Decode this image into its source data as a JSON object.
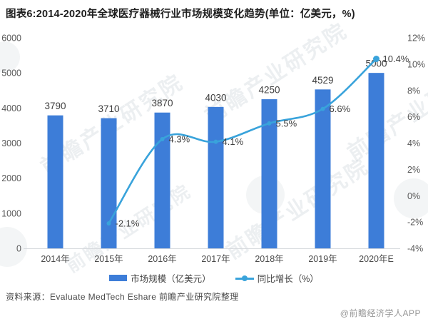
{
  "title": "图表6:2014-2020年全球医疗器械行业市场规模变化趋势(单位：亿美元，%)",
  "watermark": {
    "text": "前瞻产业研究院"
  },
  "source_text": "资料来源：Evaluate MedTech Eshare 前瞻产业研究院整理",
  "brand_text": "@前瞻经济学人APP",
  "colors": {
    "bar": "#3d7dd8",
    "line": "#39a3db",
    "axis_line": "#d5d8dc",
    "data_label": "#3f3f3f",
    "axis_label": "#595959"
  },
  "chart_data": {
    "type": "bar",
    "subtype": "bar-line-combo",
    "title": "图表6:2014-2020年全球医疗器械行业市场规模变化趋势(单位：亿美元，%)",
    "categories": [
      "2014年",
      "2015年",
      "2016年",
      "2017年",
      "2018年",
      "2019年",
      "2020年E"
    ],
    "series": [
      {
        "name": "市场规模（亿美元）",
        "type": "bar",
        "axis": "left",
        "values": [
          3790,
          3710,
          3870,
          4030,
          4250,
          4529,
          5000
        ],
        "labels": [
          "3790",
          "3710",
          "3870",
          "4030",
          "4250",
          "4529",
          "5000"
        ]
      },
      {
        "name": "同比增长（%）",
        "type": "line",
        "axis": "right",
        "values": [
          null,
          -2.1,
          4.3,
          4.1,
          5.5,
          6.6,
          10.4
        ],
        "labels": [
          null,
          "-2.1%",
          "4.3%",
          "4.1%",
          "5.5%",
          "6.6%",
          "10.4%"
        ]
      }
    ],
    "left_axis": {
      "min": 0,
      "max": 6000,
      "ticks": [
        0,
        1000,
        2000,
        3000,
        4000,
        5000,
        6000
      ],
      "tick_labels": [
        "0",
        "1000",
        "2000",
        "3000",
        "4000",
        "5000",
        "6000"
      ]
    },
    "right_axis": {
      "min": -4,
      "max": 12,
      "ticks": [
        -4,
        -2,
        0,
        2,
        4,
        6,
        8,
        10,
        12
      ],
      "tick_labels": [
        "-4%",
        "-2%",
        "0%",
        "2%",
        "4%",
        "6%",
        "8%",
        "10%",
        "12%"
      ]
    },
    "grid": false,
    "legend_position": "bottom"
  }
}
